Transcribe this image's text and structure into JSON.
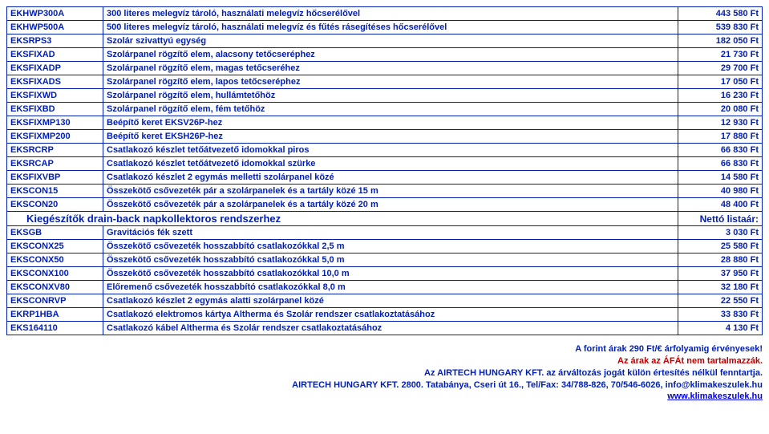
{
  "colors": {
    "border": "#001eb4",
    "text": "#001eb4",
    "accent_red": "#c00000",
    "link": "#0000ee",
    "background": "#ffffff"
  },
  "rows": [
    {
      "code": "EKHWP300A",
      "desc": "300 literes melegvíz tároló, használati melegvíz hőcserélővel",
      "price": "443 580 Ft"
    },
    {
      "code": "EKHWP500A",
      "desc": "500 literes melegvíz tároló, használati melegvíz és fűtés rásegítéses hőcserélővel",
      "price": "539 830 Ft"
    },
    {
      "code": "EKSRPS3",
      "desc": "Szolár szivattyú egység",
      "price": "182 050 Ft"
    },
    {
      "code": "EKSFIXAD",
      "desc": "Szolárpanel rögzítő elem, alacsony tetőcseréphez",
      "price": "21 730 Ft"
    },
    {
      "code": "EKSFIXADP",
      "desc": "Szolárpanel rögzítő elem, magas tetőcseréhez",
      "price": "29 700 Ft"
    },
    {
      "code": "EKSFIXADS",
      "desc": "Szolárpanel rögzítő elem, lapos tetőcseréphez",
      "price": "17 050 Ft"
    },
    {
      "code": "EKSFIXWD",
      "desc": "Szolárpanel rögzítő elem, hullámtetőhöz",
      "price": "16 230 Ft"
    },
    {
      "code": "EKSFIXBD",
      "desc": "Szolárpanel rögzítő elem, fém tetőhöz",
      "price": "20 080 Ft"
    },
    {
      "code": "EKSFIXMP130",
      "desc": "Beépítő keret EKSV26P-hez",
      "price": "12 930 Ft"
    },
    {
      "code": "EKSFIXMP200",
      "desc": "Beépítő keret EKSH26P-hez",
      "price": "17 880 Ft"
    },
    {
      "code": "EKSRCRP",
      "desc": "Csatlakozó készlet tetőátvezető idomokkal piros",
      "price": "66 830 Ft"
    },
    {
      "code": "EKSRCAP",
      "desc": "Csatlakozó készlet tetőátvezető idomokkal szürke",
      "price": "66 830 Ft"
    },
    {
      "code": "EKSFIXVBP",
      "desc": "Csatlakozó készlet 2 egymás melletti szolárpanel közé",
      "price": "14 580 Ft"
    },
    {
      "code": "EKSCON15",
      "desc": "Összekötő csővezeték pár a szolárpanelek és a tartály közé 15 m",
      "price": "40 980 Ft"
    },
    {
      "code": "EKSCON20",
      "desc": "Összekötő csővezeték pár a szolárpanelek és a tartály közé 20 m",
      "price": "48 400 Ft"
    }
  ],
  "section": {
    "title": "Kiegészítők drain-back napkollektoros rendszerhez",
    "label": "Nettó listaár:"
  },
  "rows2": [
    {
      "code": "EKSGB",
      "desc": "Gravitációs fék szett",
      "price": "3 030 Ft"
    },
    {
      "code": "EKSCONX25",
      "desc": "Összekötő csővezeték hosszabbító csatlakozókkal 2,5 m",
      "price": "25 580 Ft"
    },
    {
      "code": "EKSCONX50",
      "desc": "Összekötő csővezeték hosszabbító csatlakozókkal 5,0 m",
      "price": "28 880 Ft"
    },
    {
      "code": "EKSCONX100",
      "desc": "Összekötő csővezeték hosszabbító csatlakozókkal 10,0 m",
      "price": "37 950 Ft"
    },
    {
      "code": "EKSCONXV80",
      "desc": "Előremenő csővezeték hosszabbító csatlakozókkal 8,0 m",
      "price": "32 180 Ft"
    },
    {
      "code": "EKSCONRVP",
      "desc": "Csatlakozó készlet 2 egymás alatti szolárpanel közé",
      "price": "22 550 Ft"
    },
    {
      "code": "EKRP1HBA",
      "desc": "Csatlakozó elektromos kártya Altherma és Szolár rendszer csatlakoztatásához",
      "price": "33 830 Ft"
    },
    {
      "code": "EKS164110",
      "desc": "Csatlakozó kábel Altherma és Szolár rendszer csatlakoztatásához",
      "price": "4 130 Ft"
    }
  ],
  "footer": {
    "line1": "A forint árak 290 Ft/€ árfolyamig érvényesek!",
    "line2": "Az árak az ÁFÁt nem tartalmazzák.",
    "line3": "Az AIRTECH HUNGARY KFT. az árváltozás jogát külön értesítés nélkül fenntartja.",
    "line4": "AIRTECH HUNGARY KFT. 2800. Tatabánya, Cseri út 16., Tel/Fax: 34/788-826, 70/546-6026, info@klimakeszulek.hu",
    "link": "www.klimakeszulek.hu"
  }
}
